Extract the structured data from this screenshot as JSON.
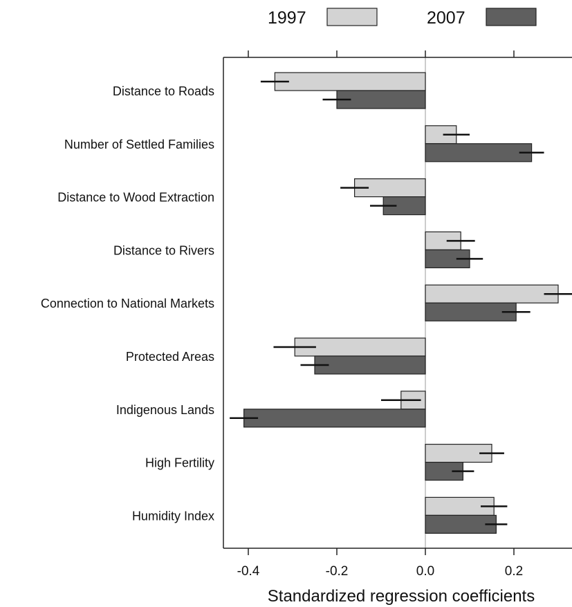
{
  "chart_data": {
    "type": "bar",
    "orientation": "horizontal",
    "xlabel": "Standardized regression coefficients",
    "xlim": [
      -0.45,
      0.33
    ],
    "xticks": [
      -0.4,
      -0.2,
      0.0,
      0.2
    ],
    "xtick_labels": [
      "-0.4",
      "-0.2",
      "0.0",
      "0.2"
    ],
    "reference_line": 0.0,
    "legend_placement": "top",
    "categories": [
      "Distance to Roads",
      "Number of Settled Families",
      "Distance to Wood Extraction",
      "Distance to Rivers",
      "Connection to National Markets",
      "Protected Areas",
      "Indigenous Lands",
      "High Fertility",
      "Humidity Index"
    ],
    "series": [
      {
        "name": "1997",
        "color": "#d3d3d3",
        "values": [
          -0.34,
          0.07,
          -0.16,
          0.08,
          0.3,
          -0.295,
          -0.055,
          0.15,
          0.155
        ],
        "error": [
          0.032,
          0.03,
          0.032,
          0.032,
          0.032,
          0.048,
          0.045,
          0.028,
          0.03
        ]
      },
      {
        "name": "2007",
        "color": "#5f5f5f",
        "values": [
          -0.2,
          0.24,
          -0.095,
          0.1,
          0.205,
          -0.25,
          -0.41,
          0.085,
          0.16
        ],
        "error": [
          0.032,
          0.028,
          0.03,
          0.03,
          0.032,
          0.032,
          0.032,
          0.025,
          0.025
        ]
      }
    ]
  }
}
